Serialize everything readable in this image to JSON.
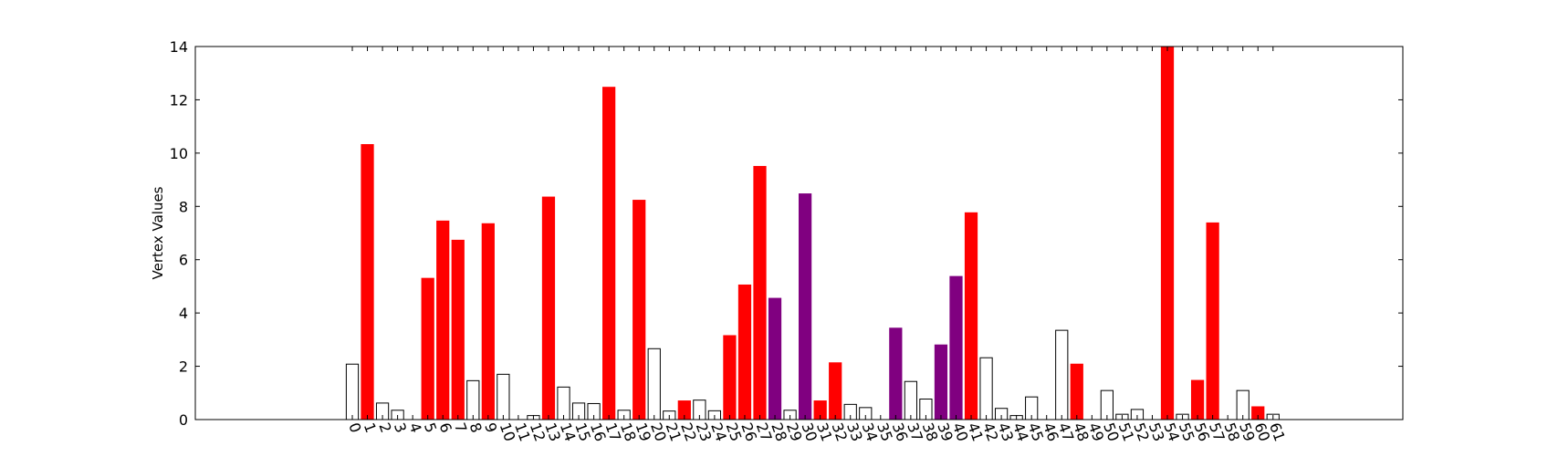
{
  "chart_data": {
    "type": "bar",
    "title": "",
    "xlabel": "",
    "ylabel": "Vertex Values",
    "ylim": [
      0,
      14
    ],
    "xlim": [
      -10,
      70
    ],
    "yticks": [
      0,
      2,
      4,
      6,
      8,
      10,
      12,
      14
    ],
    "grid": false,
    "legend": "none",
    "colors": {
      "white": "#ffffff",
      "red": "#ff0000",
      "purple": "#800080"
    },
    "categories": [
      "0",
      "1",
      "2",
      "3",
      "4",
      "5",
      "6",
      "7",
      "8",
      "9",
      "10",
      "11",
      "12",
      "13",
      "14",
      "15",
      "16",
      "17",
      "18",
      "19",
      "20",
      "21",
      "22",
      "23",
      "24",
      "25",
      "26",
      "27",
      "28",
      "29",
      "30",
      "31",
      "32",
      "33",
      "34",
      "35",
      "36",
      "37",
      "38",
      "39",
      "40",
      "41",
      "42",
      "43",
      "44",
      "45",
      "46",
      "47",
      "48",
      "49",
      "50",
      "51",
      "52",
      "53",
      "54",
      "55",
      "56",
      "57",
      "58",
      "59",
      "60",
      "61"
    ],
    "values": [
      2.08,
      10.32,
      0.62,
      0.35,
      0,
      5.3,
      7.45,
      6.73,
      1.46,
      7.35,
      1.7,
      0,
      0.15,
      8.35,
      1.22,
      0.62,
      0.6,
      12.47,
      0.35,
      8.23,
      2.66,
      0.32,
      0.7,
      0.73,
      0.33,
      3.15,
      5.05,
      9.5,
      4.55,
      0.35,
      8.47,
      0.7,
      2.13,
      0.57,
      0.45,
      0,
      3.43,
      1.43,
      0.77,
      2.8,
      5.37,
      7.76,
      2.32,
      0.42,
      0.15,
      0.85,
      0,
      3.35,
      2.08,
      0,
      1.09,
      0.2,
      0.38,
      0,
      14.0,
      0.2,
      1.47,
      7.38,
      0,
      1.09,
      0.48,
      0.2
    ],
    "bar_colors": [
      "white",
      "red",
      "white",
      "white",
      "white",
      "red",
      "red",
      "red",
      "white",
      "red",
      "white",
      "white",
      "white",
      "red",
      "white",
      "white",
      "white",
      "red",
      "white",
      "red",
      "white",
      "white",
      "red",
      "white",
      "white",
      "red",
      "red",
      "red",
      "purple",
      "white",
      "purple",
      "red",
      "red",
      "white",
      "white",
      "white",
      "purple",
      "white",
      "white",
      "purple",
      "purple",
      "red",
      "white",
      "white",
      "white",
      "white",
      "white",
      "white",
      "red",
      "white",
      "white",
      "white",
      "white",
      "white",
      "red",
      "white",
      "red",
      "red",
      "white",
      "white",
      "red",
      "white"
    ]
  }
}
